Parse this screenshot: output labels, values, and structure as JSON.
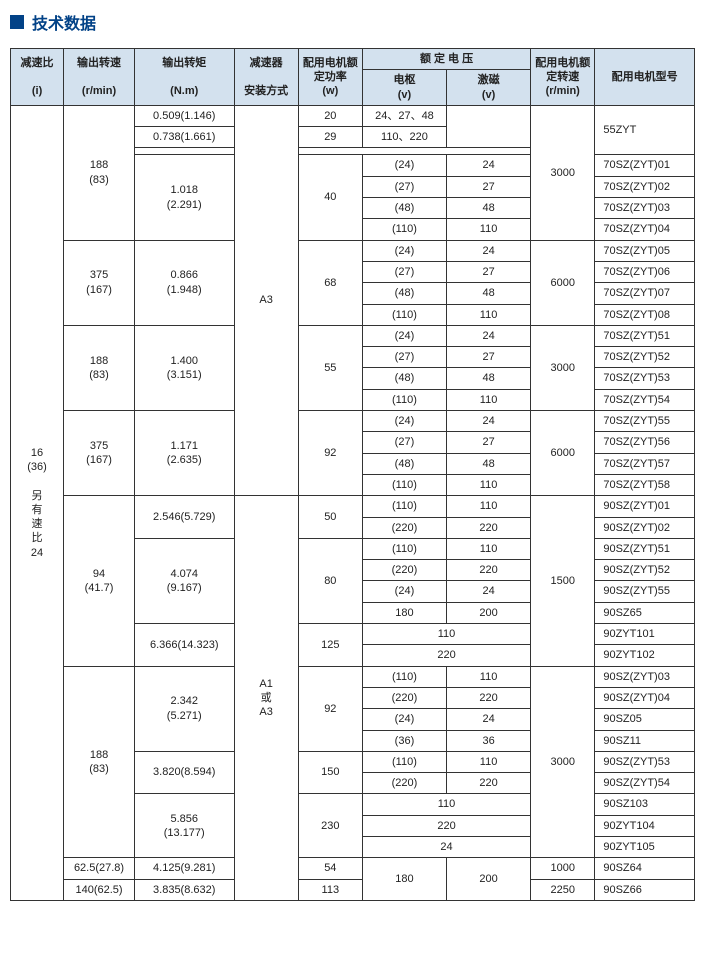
{
  "title": "技术数据",
  "headers": {
    "ratio": "减速比",
    "ratio_sub": "(i)",
    "out_speed": "输出转速",
    "out_speed_sub": "(r/min)",
    "torque": "输出转矩",
    "torque_sub": "(N.m)",
    "install": "减速器",
    "install_sub": "安装方式",
    "power": "配用电机额定功率",
    "power_sub": "(w)",
    "rated_voltage": "额 定 电 压",
    "armature": "电枢",
    "armature_sub": "(v)",
    "excite": "激磁",
    "excite_sub": "(v)",
    "motor_speed": "配用电机额定转速",
    "motor_speed_sub": "(r/min)",
    "model": "配用电机型号"
  },
  "ratio_block": "16\n(36)\n\n另\n有\n速\n比\n24",
  "install_a3": "A3",
  "install_a1a3": "A1\n或\nA3",
  "group1": {
    "out_speed": "188\n(83)",
    "torque_a": "0.509(1.146)",
    "torque_b": "0.738(1.661)",
    "power_a": "20",
    "power_b": "29",
    "volt_a": "24、27、48",
    "volt_b": "110、220",
    "motor_speed": "3000",
    "model": "55ZYT",
    "torque_c": "1.018\n(2.291)",
    "power_c": "40",
    "rows": [
      {
        "dv": "(24)",
        "xv": "24",
        "m": "70SZ(ZYT)01"
      },
      {
        "dv": "(27)",
        "xv": "27",
        "m": "70SZ(ZYT)02"
      },
      {
        "dv": "(48)",
        "xv": "48",
        "m": "70SZ(ZYT)03"
      },
      {
        "dv": "(110)",
        "xv": "110",
        "m": "70SZ(ZYT)04"
      }
    ]
  },
  "group2": {
    "out_speed": "375\n(167)",
    "torque": "0.866\n(1.948)",
    "power": "68",
    "motor_speed": "6000",
    "rows": [
      {
        "dv": "(24)",
        "xv": "24",
        "m": "70SZ(ZYT)05"
      },
      {
        "dv": "(27)",
        "xv": "27",
        "m": "70SZ(ZYT)06"
      },
      {
        "dv": "(48)",
        "xv": "48",
        "m": "70SZ(ZYT)07"
      },
      {
        "dv": "(110)",
        "xv": "110",
        "m": "70SZ(ZYT)08"
      }
    ]
  },
  "group3": {
    "out_speed": "188\n(83)",
    "torque": "1.400\n(3.151)",
    "power": "55",
    "motor_speed": "3000",
    "rows": [
      {
        "dv": "(24)",
        "xv": "24",
        "m": "70SZ(ZYT)51"
      },
      {
        "dv": "(27)",
        "xv": "27",
        "m": "70SZ(ZYT)52"
      },
      {
        "dv": "(48)",
        "xv": "48",
        "m": "70SZ(ZYT)53"
      },
      {
        "dv": "(110)",
        "xv": "110",
        "m": "70SZ(ZYT)54"
      }
    ]
  },
  "group4": {
    "out_speed": "375\n(167)",
    "torque": "1.171\n(2.635)",
    "power": "92",
    "motor_speed": "6000",
    "rows": [
      {
        "dv": "(24)",
        "xv": "24",
        "m": "70SZ(ZYT)55"
      },
      {
        "dv": "(27)",
        "xv": "27",
        "m": "70SZ(ZYT)56"
      },
      {
        "dv": "(48)",
        "xv": "48",
        "m": "70SZ(ZYT)57"
      },
      {
        "dv": "(110)",
        "xv": "110",
        "m": "70SZ(ZYT)58"
      }
    ]
  },
  "group5": {
    "out_speed": "94\n(41.7)",
    "torque_a": "2.546(5.729)",
    "power_a": "50",
    "rows_a": [
      {
        "dv": "(110)",
        "xv": "110",
        "m": "90SZ(ZYT)01"
      },
      {
        "dv": "(220)",
        "xv": "220",
        "m": "90SZ(ZYT)02"
      }
    ],
    "torque_b": "4.074\n(9.167)",
    "power_b": "80",
    "rows_b": [
      {
        "dv": "(110)",
        "xv": "110",
        "m": "90SZ(ZYT)51"
      },
      {
        "dv": "(220)",
        "xv": "220",
        "m": "90SZ(ZYT)52"
      },
      {
        "dv": "(24)",
        "xv": "24",
        "m": "90SZ(ZYT)55"
      },
      {
        "dv": "180",
        "xv": "200",
        "m": "90SZ65"
      }
    ],
    "motor_speed": "1500",
    "torque_c": "6.366(14.323)",
    "power_c": "125",
    "rows_c": [
      {
        "dv": "110",
        "xv": "",
        "m": "90ZYT101"
      },
      {
        "dv": "220",
        "xv": "",
        "m": "90ZYT102"
      }
    ]
  },
  "group6": {
    "out_speed": "188\n(83)",
    "torque_a": "2.342\n(5.271)",
    "power_a": "92",
    "rows_a": [
      {
        "dv": "(110)",
        "xv": "110",
        "m": "90SZ(ZYT)03"
      },
      {
        "dv": "(220)",
        "xv": "220",
        "m": "90SZ(ZYT)04"
      },
      {
        "dv": "(24)",
        "xv": "24",
        "m": "90SZ05"
      },
      {
        "dv": "(36)",
        "xv": "36",
        "m": "90SZ11"
      }
    ],
    "motor_speed": "3000",
    "torque_b": "3.820(8.594)",
    "power_b": "150",
    "rows_b": [
      {
        "dv": "(110)",
        "xv": "110",
        "m": "90SZ(ZYT)53"
      },
      {
        "dv": "(220)",
        "xv": "220",
        "m": "90SZ(ZYT)54"
      }
    ],
    "torque_c": "5.856\n(13.177)",
    "power_c": "230",
    "rows_c": [
      {
        "dv": "110",
        "xv": "",
        "m": "90SZ103"
      },
      {
        "dv": "220",
        "xv": "",
        "m": "90ZYT104"
      },
      {
        "dv": "24",
        "xv": "",
        "m": "90ZYT105"
      }
    ]
  },
  "group7": {
    "r1": {
      "os": "62.5(27.8)",
      "tq": "4.125(9.281)",
      "pw": "54",
      "dv": "180",
      "xv": "200",
      "ms": "1000",
      "m": "90SZ64"
    },
    "r2": {
      "os": "140(62.5)",
      "tq": "3.835(8.632)",
      "pw": "113",
      "ms": "2250",
      "m": "90SZ66"
    }
  }
}
